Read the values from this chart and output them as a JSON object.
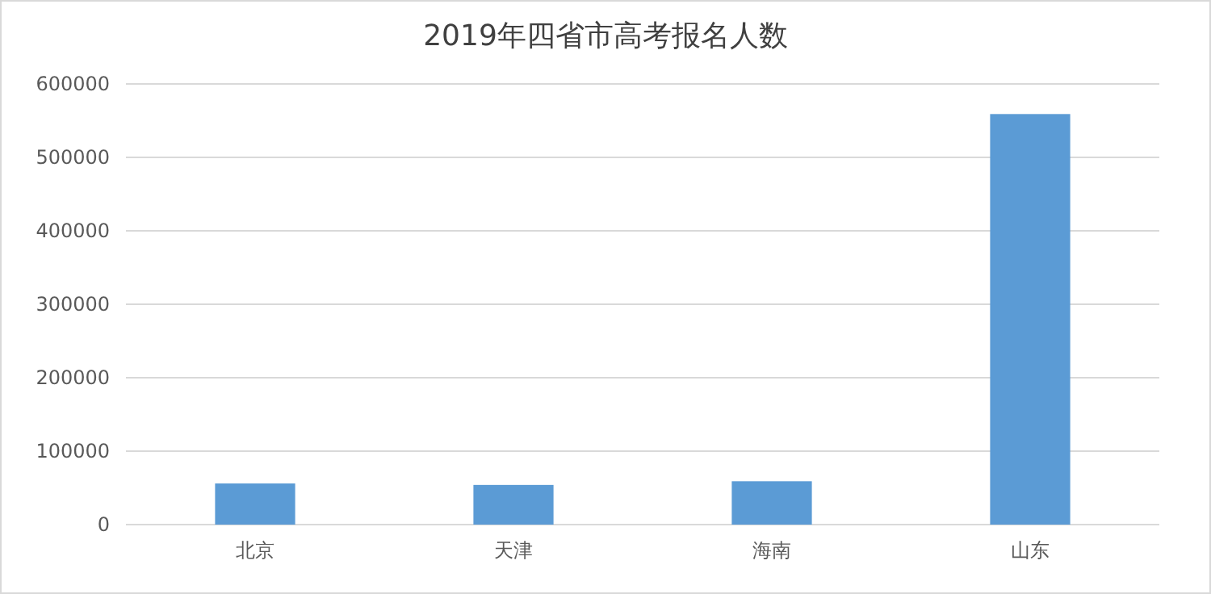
{
  "chart_data": {
    "type": "bar",
    "title": "2019年四省市高考报名人数",
    "categories": [
      "北京",
      "天津",
      "海南",
      "山东"
    ],
    "values": [
      56000,
      54000,
      59000,
      559000
    ],
    "color": "#5b9bd5",
    "ylim": [
      0,
      600000
    ],
    "yticks": [
      0,
      100000,
      200000,
      300000,
      400000,
      500000,
      600000
    ],
    "grid": "y"
  }
}
